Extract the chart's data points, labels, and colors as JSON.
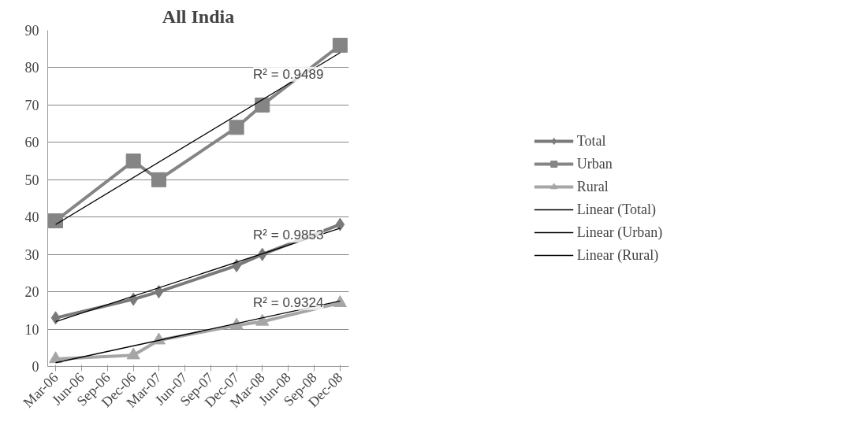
{
  "chart_data": {
    "type": "line",
    "title": "All India",
    "x": [
      "2006-03",
      "2006-12",
      "2007-03",
      "2007-12",
      "2008-03",
      "2008-12"
    ],
    "series": [
      {
        "name": "Total",
        "color": "#7a7a7a",
        "marker": "diamond",
        "values": [
          13,
          18,
          20,
          27,
          30,
          38
        ]
      },
      {
        "name": "Urban",
        "color": "#858585",
        "marker": "square",
        "values": [
          39,
          55,
          50,
          64,
          70,
          86
        ]
      },
      {
        "name": "Rural",
        "color": "#a6a6a6",
        "marker": "triangle",
        "values": [
          2,
          3,
          7,
          11,
          12,
          17
        ]
      },
      {
        "name": "Linear (Total)",
        "color": "#000000",
        "marker": "none",
        "x": [
          "2006-03",
          "2008-12"
        ],
        "values": [
          12,
          37
        ]
      },
      {
        "name": "Linear (Urban)",
        "color": "#000000",
        "marker": "none",
        "x": [
          "2006-03",
          "2008-12"
        ],
        "values": [
          38,
          84
        ]
      },
      {
        "name": "Linear (Rural)",
        "color": "#000000",
        "marker": "none",
        "x": [
          "2006-03",
          "2008-12"
        ],
        "values": [
          1,
          17.5
        ]
      }
    ],
    "annotations": [
      {
        "text": "R² = 0.9489",
        "x": "2008-06",
        "y": 75.6
      },
      {
        "text": "R² = 0.9853",
        "x": "2008-06",
        "y": 32.5
      },
      {
        "text": "R² = 0.9324",
        "x": "2008-06",
        "y": 14.5
      }
    ],
    "xlim": [
      "2006-02",
      "2009-01"
    ],
    "xticks": [
      {
        "value": "2006-03",
        "label": "Mar-06"
      },
      {
        "value": "2006-06",
        "label": "Jun-06"
      },
      {
        "value": "2006-09",
        "label": "Sep-06"
      },
      {
        "value": "2006-12",
        "label": "Dec-06"
      },
      {
        "value": "2007-03",
        "label": "Mar-07"
      },
      {
        "value": "2007-06",
        "label": "Jun-07"
      },
      {
        "value": "2007-09",
        "label": "Sep-07"
      },
      {
        "value": "2007-12",
        "label": "Dec-07"
      },
      {
        "value": "2008-03",
        "label": "Mar-08"
      },
      {
        "value": "2008-06",
        "label": "Jun-08"
      },
      {
        "value": "2008-09",
        "label": "Sep-08"
      },
      {
        "value": "2008-12",
        "label": "Dec-08"
      }
    ],
    "ylim": [
      0,
      90
    ],
    "yticks": [
      0,
      10,
      20,
      30,
      40,
      50,
      60,
      70,
      80,
      90
    ],
    "grid": "y",
    "legend": "right",
    "line_style": "solid"
  }
}
